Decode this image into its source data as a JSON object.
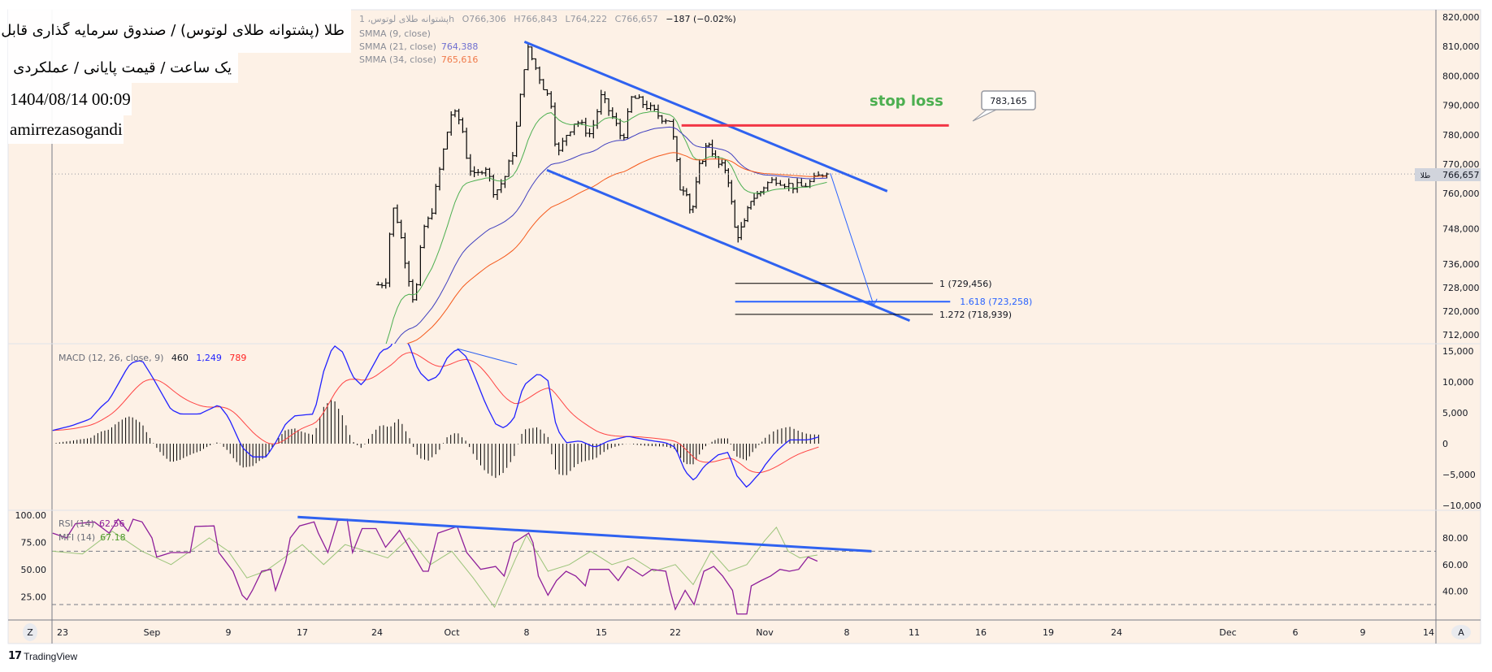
{
  "overlay": {
    "title": "طلا (پشتوانه طلای لوتوس) / صندوق سرمایه گذاری قابل معامله",
    "subtitle": "یک ساعت / قیمت پایانی / عملکردی",
    "datetime": "1404/08/14 00:09",
    "author": "amirrezasogandi"
  },
  "legend": {
    "symbol": "پشتوانه طلای لوتوس، 1h",
    "open": "O766,306",
    "high": "H766,843",
    "low": "L764,222",
    "close": "C766,657",
    "change": "−187 (−0.02%)",
    "smma9": "SMMA (9, close)",
    "smma21": "SMMA (21, close)",
    "smma21_value": "764,388",
    "smma34": "SMMA (34, close)",
    "smma34_value": "765,616"
  },
  "macd_legend": {
    "label": "MACD (12, 26, close, 9)",
    "hist": "460",
    "macd": "1,249",
    "signal": "789"
  },
  "rsi_legend": {
    "label": "RSI (14)",
    "value": "62.56"
  },
  "mfi_legend": {
    "label": "MFI (14)",
    "value": "67.18"
  },
  "current_price": {
    "tag": "طلا",
    "value": "766,657"
  },
  "annotations": {
    "stop_loss_text": "stop loss",
    "stop_loss_callout": "783,165",
    "fib_1": "1 (729,456)",
    "fib_1618": "1.618 (723,258)",
    "fib_1272": "1.272 (718,939)"
  },
  "buttons": {
    "left": "Z",
    "right": "A"
  },
  "brand": {
    "name": "TradingView"
  },
  "colors": {
    "background": "#fdf1e6",
    "bars": "#000000",
    "smma9": "#4caf50",
    "smma21": "#3f3fbf",
    "smma34": "#f5591b",
    "macd": "#2222ff",
    "signal": "#ff4444",
    "rsi": "#8e1e9a",
    "mfi": "#9bc47a",
    "channel": "#2f62f0",
    "stop_loss": "#f23645",
    "stop_loss_text": "#4caf50",
    "fib_target": "#2962ff"
  },
  "chart_data": [
    {
      "type": "ohlc-line",
      "pane": "price",
      "y_ticks": [
        "820,000",
        "810,000",
        "800,000",
        "790,000",
        "780,000",
        "770,000",
        "760,000",
        "748,000",
        "736,000",
        "728,000",
        "720,000",
        "712,000"
      ],
      "y_tick_values": [
        820000,
        810000,
        800000,
        790000,
        780000,
        770000,
        760000,
        748000,
        736000,
        728000,
        720000,
        712000
      ],
      "x_ticks": [
        "23",
        "Sep",
        "9",
        "17",
        "24",
        "Oct",
        "8",
        "15",
        "22",
        "Nov",
        "8",
        "11",
        "16",
        "19",
        "24",
        "Dec",
        "6",
        "9",
        "14"
      ],
      "x_tick_dates": [
        "08/23",
        "09/01",
        "09/09",
        "09/17",
        "09/24",
        "10/01",
        "10/08",
        "10/15",
        "10/22",
        "11/01",
        "11/08",
        "11/11",
        "11/16",
        "11/19",
        "11/24",
        "12/01",
        "12/06",
        "12/09",
        "12/14"
      ],
      "close": [
        [
          "09/24.1",
          729000
        ],
        [
          "09/24.8",
          730000
        ],
        [
          "09/25.4",
          756000
        ],
        [
          "09/26.0",
          750000
        ],
        [
          "09/26.6",
          738000
        ],
        [
          "09/27.5",
          722000
        ],
        [
          "09/28.3",
          748000
        ],
        [
          "09/29.0",
          752000
        ],
        [
          "09/29.7",
          765000
        ],
        [
          "09/30.4",
          778000
        ],
        [
          "10/01.0",
          788000
        ],
        [
          "10/01.9",
          784000
        ],
        [
          "10/02.5",
          770000
        ],
        [
          "10/03.2",
          765000
        ],
        [
          "10/04.1",
          770000
        ],
        [
          "10/05.0",
          760000
        ],
        [
          "10/05.9",
          765000
        ],
        [
          "10/06.8",
          775000
        ],
        [
          "10/07.5",
          795000
        ],
        [
          "10/08.0",
          810000
        ],
        [
          "10/08.6",
          805000
        ],
        [
          "10/09.5",
          797000
        ],
        [
          "10/10.4",
          790000
        ],
        [
          "10/10.8",
          772000
        ],
        [
          "10/11.7",
          780000
        ],
        [
          "10/12.6",
          785000
        ],
        [
          "10/14.0",
          780000
        ],
        [
          "10/15.0",
          793000
        ],
        [
          "10/16.2",
          785000
        ],
        [
          "10/17.0",
          778000
        ],
        [
          "10/17.9",
          793000
        ],
        [
          "10/19.2",
          790000
        ],
        [
          "10/20.6",
          786000
        ],
        [
          "10/21.5",
          785000
        ],
        [
          "10/22.0",
          775000
        ],
        [
          "10/22.5",
          762000
        ],
        [
          "10/23.2",
          762000
        ],
        [
          "10/23.8",
          752000
        ],
        [
          "10/24.6",
          768000
        ],
        [
          "10/25.7",
          778000
        ],
        [
          "10/26.7",
          770000
        ],
        [
          "10/27.8",
          768000
        ],
        [
          "10/28.8",
          745000
        ],
        [
          "10/29.8",
          750000
        ],
        [
          "10/30.4",
          758000
        ],
        [
          "10/31.4",
          760000
        ],
        [
          "11/01.0",
          763000
        ],
        [
          "11/02.0",
          765000
        ],
        [
          "11/03.0",
          763000
        ],
        [
          "11/04.0",
          762000
        ],
        [
          "11/05.0",
          764000
        ],
        [
          "11/06.0",
          767000
        ],
        [
          "11/06.5",
          766657
        ]
      ],
      "channel_upper": [
        [
          "10/07.8",
          811600
        ],
        [
          "11/09.8",
          760800
        ]
      ],
      "channel_lower": [
        [
          "10/09.9",
          768000
        ],
        [
          "11/10.8",
          716800
        ]
      ],
      "stop_loss": {
        "from": "10/22.7",
        "to": "11/13.6",
        "price": 783165
      },
      "fib_levels": [
        {
          "level": "1",
          "price": 729456,
          "from": "10/28.7",
          "to": "11/12.4"
        },
        {
          "level": "1.618",
          "price": 723258,
          "from": "10/28.7",
          "to": "11/13.7"
        },
        {
          "level": "1.272",
          "price": 718939,
          "from": "10/28.7",
          "to": "11/12.4"
        }
      ],
      "target_arrow": [
        [
          "11/06.6",
          766900
        ],
        [
          "11/09.2",
          722000
        ]
      ]
    },
    {
      "type": "line",
      "pane": "macd",
      "y_ticks": [
        "15,000",
        "10,000",
        "5,000",
        "0",
        "−5,000",
        "−10,000"
      ],
      "y_tick_values": [
        15000,
        10000,
        5000,
        0,
        -5000,
        -10000
      ],
      "macd": [
        [
          "08/22",
          2150
        ],
        [
          "08/23.9",
          2900
        ],
        [
          "08/25.8",
          4000
        ],
        [
          "08/26.8",
          5850
        ],
        [
          "08/27.7",
          7100
        ],
        [
          "08/29.6",
          12500
        ],
        [
          "08/30.1",
          13200
        ],
        [
          "08/31",
          13500
        ],
        [
          "09/01",
          10900
        ],
        [
          "09/03",
          5500
        ],
        [
          "09/04",
          4800
        ],
        [
          "09/06",
          4800
        ],
        [
          "09/08",
          6300
        ],
        [
          "09/09",
          4300
        ],
        [
          "09/10.5",
          -600
        ],
        [
          "09/11.6",
          -2150
        ],
        [
          "09/13.1",
          -2150
        ],
        [
          "09/14.1",
          150
        ],
        [
          "09/15.2",
          3200
        ],
        [
          "09/16.2",
          4500
        ],
        [
          "09/18.1",
          4800
        ],
        [
          "09/19",
          11700
        ],
        [
          "09/19.9",
          16000
        ],
        [
          "09/20.8",
          14800
        ],
        [
          "09/21.7",
          10900
        ],
        [
          "09/22.6",
          9400
        ],
        [
          "09/24.4",
          15100
        ],
        [
          "09/25.2",
          15500
        ],
        [
          "09/26.1",
          18600
        ],
        [
          "09/27",
          16000
        ],
        [
          "09/27.9",
          11700
        ],
        [
          "09/28.8",
          10200
        ],
        [
          "09/29.7",
          10900
        ],
        [
          "09/30.6",
          14000
        ],
        [
          "10/01.5",
          15400
        ],
        [
          "10/02.4",
          14000
        ],
        [
          "10/03.3",
          10200
        ],
        [
          "10/04.2",
          6300
        ],
        [
          "10/05.1",
          3200
        ],
        [
          "10/05.9",
          2500
        ],
        [
          "10/06.8",
          4000
        ],
        [
          "10/07.7",
          9400
        ],
        [
          "10/09.1",
          11400
        ],
        [
          "10/10",
          10200
        ],
        [
          "10/10.8",
          2500
        ],
        [
          "10/11.7",
          150
        ],
        [
          "10/13",
          450
        ],
        [
          "10/14.4",
          -600
        ],
        [
          "10/15.7",
          450
        ],
        [
          "10/17.5",
          1200
        ],
        [
          "10/19.3",
          600
        ],
        [
          "10/21.1",
          150
        ],
        [
          "10/22",
          -600
        ],
        [
          "10/23.1",
          -4500
        ],
        [
          "10/24.1",
          -6000
        ],
        [
          "10/25.2",
          -3700
        ],
        [
          "10/26.8",
          -1800
        ],
        [
          "10/27.9",
          -1400
        ],
        [
          "10/28.9",
          -5200
        ],
        [
          "10/30",
          -7100
        ],
        [
          "10/31.6",
          -4500
        ],
        [
          "11/01.9",
          -1400
        ],
        [
          "11/03.1",
          600
        ],
        [
          "11/04.7",
          600
        ],
        [
          "11/05.9",
          1250
        ]
      ],
      "trendline": [
        [
          "10/01.5",
          15400
        ],
        [
          "10/07.1",
          12800
        ]
      ]
    },
    {
      "type": "line",
      "pane": "rsi",
      "y_ticks_left": [
        "100.00",
        "75.00",
        "50.00",
        "25.00"
      ],
      "y_ticks_right": [
        "80.00",
        "60.00",
        "40.00"
      ],
      "y_tick_values_right": [
        80,
        60,
        40
      ],
      "bands": [
        70,
        30
      ],
      "rsi": [
        [
          "08/22",
          83.6
        ],
        [
          "08/23.4",
          80
        ],
        [
          "08/24.3",
          90.7
        ],
        [
          "08/26.2",
          92
        ],
        [
          "08/27.7",
          83.6
        ],
        [
          "08/28.6",
          94
        ],
        [
          "08/29.6",
          85
        ],
        [
          "08/30.1",
          94
        ],
        [
          "08/31",
          92
        ],
        [
          "09/01",
          80
        ],
        [
          "09/01.5",
          65.7
        ],
        [
          "09/03",
          69
        ],
        [
          "09/05",
          69
        ],
        [
          "09/05.5",
          88.6
        ],
        [
          "09/07.5",
          89
        ],
        [
          "09/08",
          69
        ],
        [
          "09/09.5",
          55
        ],
        [
          "09/10.5",
          37
        ],
        [
          "09/11",
          33.6
        ],
        [
          "09/11.6",
          40.7
        ],
        [
          "09/12.6",
          55
        ],
        [
          "09/13.6",
          56.4
        ],
        [
          "09/14.1",
          40.7
        ],
        [
          "09/15.2",
          62
        ],
        [
          "09/15.7",
          80
        ],
        [
          "09/16.7",
          89
        ],
        [
          "09/18.1",
          92
        ],
        [
          "09/18.5",
          83.6
        ],
        [
          "09/19.4",
          69
        ],
        [
          "09/20.3",
          93
        ],
        [
          "09/21.2",
          94
        ],
        [
          "09/21.7",
          69
        ],
        [
          "09/22.6",
          87
        ],
        [
          "09/23.9",
          87
        ],
        [
          "09/24.8",
          73
        ],
        [
          "09/26.1",
          85.7
        ],
        [
          "09/27",
          73
        ],
        [
          "09/28.3",
          55
        ],
        [
          "09/28.8",
          55
        ],
        [
          "09/29.7",
          83.6
        ],
        [
          "10/01.5",
          88.6
        ],
        [
          "10/02.4",
          69
        ],
        [
          "10/03.7",
          56.4
        ],
        [
          "10/05.1",
          58.6
        ],
        [
          "10/05.9",
          51.4
        ],
        [
          "10/06.8",
          76.4
        ],
        [
          "10/08.2",
          83.6
        ],
        [
          "10/08.6",
          76.4
        ],
        [
          "10/09.1",
          51.4
        ],
        [
          "10/10",
          37
        ],
        [
          "10/10.8",
          48
        ],
        [
          "10/11.7",
          55
        ],
        [
          "10/12.6",
          51.4
        ],
        [
          "10/13.5",
          44
        ],
        [
          "10/13.9",
          56.4
        ],
        [
          "10/15.7",
          56.4
        ],
        [
          "10/16.6",
          48
        ],
        [
          "10/17.5",
          58.6
        ],
        [
          "10/18.9",
          51.4
        ],
        [
          "10/19.8",
          56.4
        ],
        [
          "10/21.1",
          55
        ],
        [
          "10/21.5",
          40.7
        ],
        [
          "10/22",
          26.4
        ],
        [
          "10/23.1",
          40.7
        ],
        [
          "10/24.1",
          30
        ],
        [
          "10/25.2",
          55
        ],
        [
          "10/26.3",
          58.6
        ],
        [
          "10/27.3",
          51.4
        ],
        [
          "10/28.4",
          40.7
        ],
        [
          "10/28.9",
          22.9
        ],
        [
          "10/30",
          22.9
        ],
        [
          "10/30.5",
          44
        ],
        [
          "10/31.6",
          48
        ],
        [
          "11/01.5",
          51.4
        ],
        [
          "11/02.3",
          56.4
        ],
        [
          "11/03.1",
          55
        ],
        [
          "11/03.9",
          56.4
        ],
        [
          "11/04.7",
          65.7
        ],
        [
          "11/05.5",
          62.56
        ]
      ],
      "mfi": [
        [
          "08/22",
          70
        ],
        [
          "08/25",
          68
        ],
        [
          "08/28",
          85
        ],
        [
          "08/31",
          70
        ],
        [
          "09/03",
          60
        ],
        [
          "09/05",
          70
        ],
        [
          "09/07",
          80
        ],
        [
          "09/09",
          70
        ],
        [
          "09/11",
          50
        ],
        [
          "09/13",
          55
        ],
        [
          "09/15",
          65
        ],
        [
          "09/17",
          75
        ],
        [
          "09/19",
          60
        ],
        [
          "09/21",
          75
        ],
        [
          "09/23",
          70
        ],
        [
          "09/25",
          65
        ],
        [
          "09/27",
          80
        ],
        [
          "09/29",
          60
        ],
        [
          "10/01",
          70
        ],
        [
          "10/03",
          50
        ],
        [
          "10/05",
          28
        ],
        [
          "10/07",
          65
        ],
        [
          "10/08",
          82
        ],
        [
          "10/10",
          55
        ],
        [
          "10/12",
          60
        ],
        [
          "10/14",
          70
        ],
        [
          "10/16",
          60
        ],
        [
          "10/18",
          65
        ],
        [
          "10/20",
          55
        ],
        [
          "10/22",
          60
        ],
        [
          "10/24",
          45
        ],
        [
          "10/26",
          70
        ],
        [
          "10/28",
          55
        ],
        [
          "10/30",
          60
        ],
        [
          "11/01",
          78
        ],
        [
          "11/02",
          88
        ],
        [
          "11/03",
          70
        ],
        [
          "11/04",
          65
        ],
        [
          "11/05.5",
          67.18
        ]
      ],
      "trendline": [
        [
          "09/16.5",
          95.7
        ],
        [
          "11/09.1",
          70
        ]
      ]
    }
  ]
}
